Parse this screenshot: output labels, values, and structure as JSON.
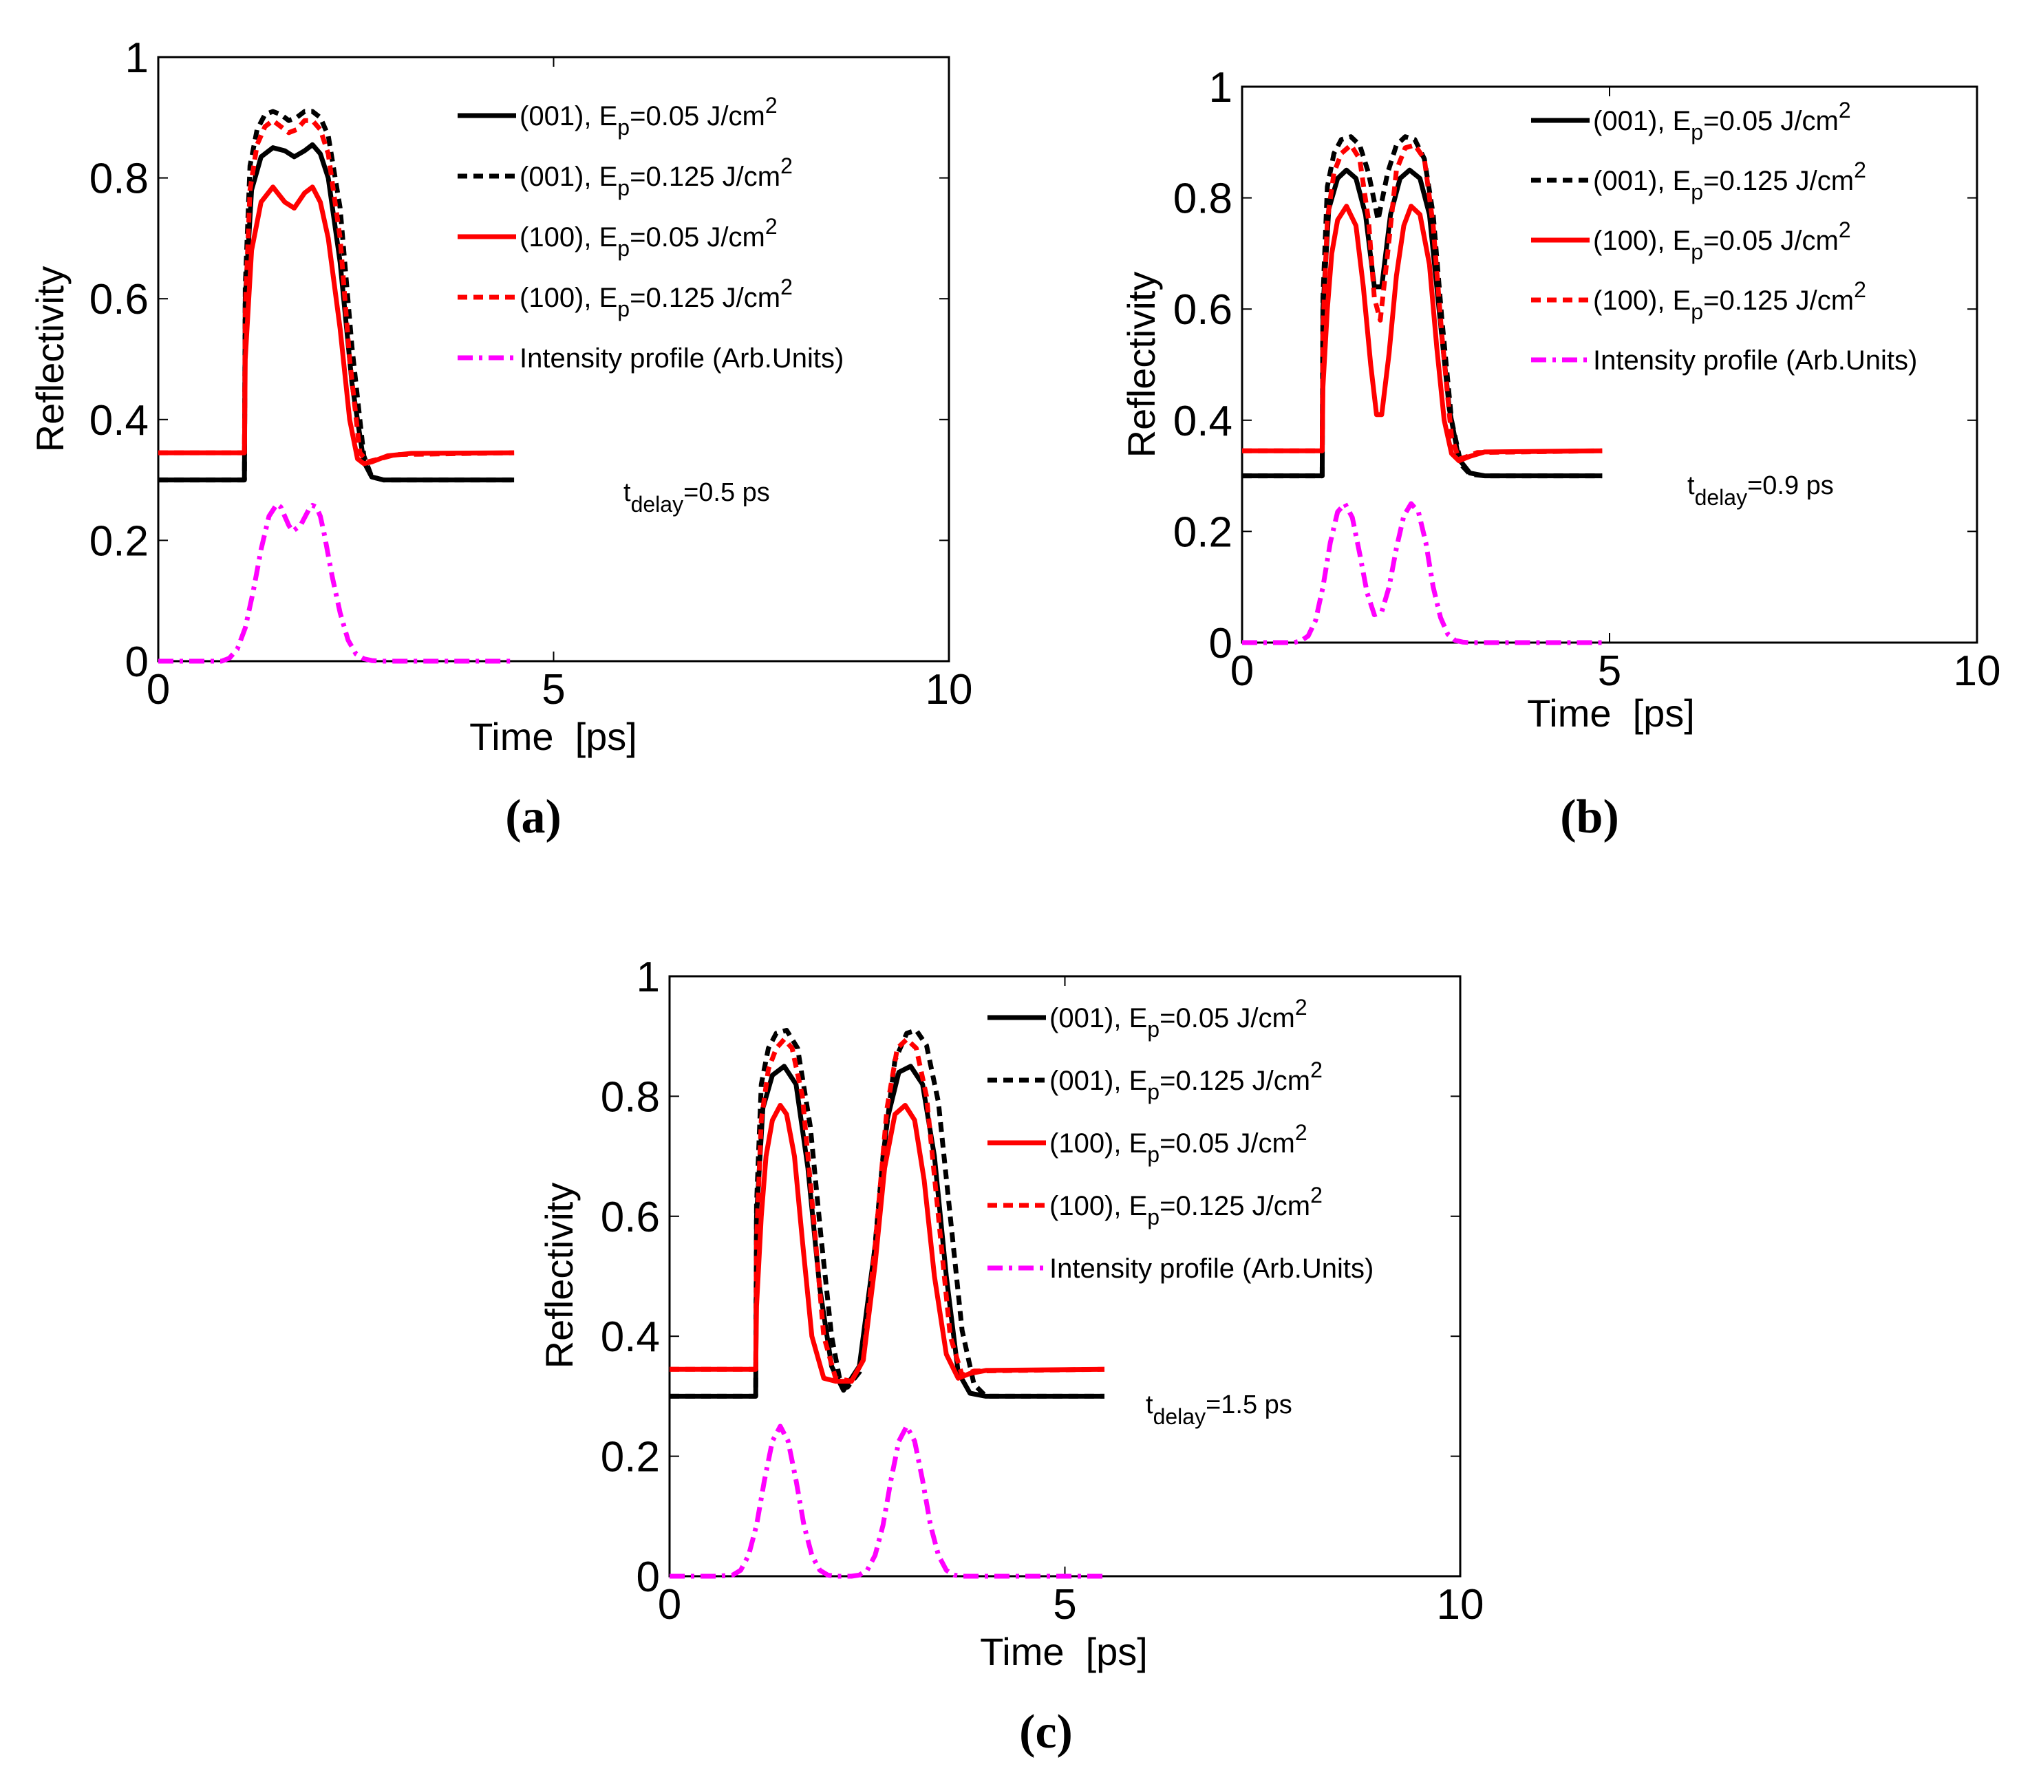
{
  "figure": {
    "panels": [
      {
        "id": "a",
        "caption": "(a)"
      },
      {
        "id": "b",
        "caption": "(b)"
      },
      {
        "id": "c",
        "caption": "(c)"
      }
    ]
  },
  "colors": {
    "black": "#000000",
    "red": "#ff0000",
    "magenta": "#ff00ff"
  },
  "chart_data": [
    {
      "type": "line",
      "panel": "(a)",
      "xlabel": "Time  [ps]",
      "ylabel": "Reflectivity",
      "xlim": [
        0,
        10
      ],
      "ylim": [
        0,
        1
      ],
      "xticks": [
        "0",
        "5",
        "10"
      ],
      "yticks": [
        "0",
        "0.2",
        "0.4",
        "0.6",
        "0.8",
        "1"
      ],
      "legend_position": "top-right",
      "annotation": {
        "t": "t",
        "sub": "delay",
        "rest": "=0.5 ps"
      },
      "series": [
        {
          "name": "(001), E",
          "sub": "p",
          "rest": "=0.05 J/cm",
          "sup": "2",
          "color": "#000000",
          "style": "solid",
          "x": [
            0,
            1.09,
            1.1,
            1.18,
            1.3,
            1.45,
            1.6,
            1.72,
            1.85,
            1.95,
            2.05,
            2.15,
            2.3,
            2.45,
            2.6,
            2.7,
            2.85,
            3.0,
            4.5
          ],
          "y": [
            0.3,
            0.3,
            0.6,
            0.78,
            0.835,
            0.85,
            0.845,
            0.835,
            0.845,
            0.855,
            0.84,
            0.8,
            0.66,
            0.46,
            0.33,
            0.305,
            0.3,
            0.3,
            0.3
          ]
        },
        {
          "name": "(001), E",
          "sub": "p",
          "rest": "=0.125 J/cm",
          "sup": "2",
          "color": "#000000",
          "style": "dash",
          "x": [
            0,
            1.09,
            1.1,
            1.16,
            1.25,
            1.35,
            1.45,
            1.55,
            1.65,
            1.75,
            1.85,
            1.95,
            2.05,
            2.15,
            2.3,
            2.45,
            2.6,
            2.7,
            2.85,
            3.0,
            4.5
          ],
          "y": [
            0.3,
            0.3,
            0.62,
            0.82,
            0.88,
            0.905,
            0.91,
            0.905,
            0.895,
            0.9,
            0.91,
            0.91,
            0.9,
            0.87,
            0.75,
            0.52,
            0.34,
            0.305,
            0.3,
            0.3,
            0.3
          ]
        },
        {
          "name": "(100), E",
          "sub": "p",
          "rest": "=0.05 J/cm",
          "sup": "2",
          "color": "#ff0000",
          "style": "solid",
          "x": [
            0,
            1.09,
            1.1,
            1.18,
            1.3,
            1.45,
            1.6,
            1.72,
            1.85,
            1.95,
            2.05,
            2.15,
            2.3,
            2.42,
            2.52,
            2.6,
            2.7,
            2.9,
            3.2,
            4.5
          ],
          "y": [
            0.345,
            0.345,
            0.5,
            0.68,
            0.76,
            0.785,
            0.76,
            0.75,
            0.775,
            0.785,
            0.76,
            0.7,
            0.55,
            0.4,
            0.335,
            0.327,
            0.33,
            0.34,
            0.344,
            0.345
          ]
        },
        {
          "name": "(100), E",
          "sub": "p",
          "rest": "=0.125 J/cm",
          "sup": "2",
          "color": "#ff0000",
          "style": "dash",
          "x": [
            0,
            1.09,
            1.1,
            1.16,
            1.25,
            1.35,
            1.45,
            1.55,
            1.65,
            1.75,
            1.85,
            1.95,
            2.05,
            2.15,
            2.3,
            2.42,
            2.55,
            2.65,
            2.8,
            3.0,
            4.5
          ],
          "y": [
            0.345,
            0.345,
            0.58,
            0.78,
            0.855,
            0.885,
            0.895,
            0.885,
            0.875,
            0.88,
            0.895,
            0.895,
            0.88,
            0.84,
            0.7,
            0.5,
            0.345,
            0.33,
            0.335,
            0.342,
            0.345
          ]
        },
        {
          "name": "Intensity profile (Arb.Units)",
          "color": "#ff00ff",
          "style": "dashdot",
          "x": [
            0,
            0.8,
            0.9,
            1.0,
            1.1,
            1.2,
            1.3,
            1.4,
            1.5,
            1.55,
            1.6,
            1.65,
            1.7,
            1.8,
            1.9,
            1.95,
            2.0,
            2.05,
            2.1,
            2.2,
            2.3,
            2.4,
            2.5,
            2.6,
            2.7,
            2.8,
            4.5
          ],
          "y": [
            0,
            0,
            0.005,
            0.02,
            0.055,
            0.115,
            0.185,
            0.24,
            0.26,
            0.255,
            0.24,
            0.225,
            0.215,
            0.225,
            0.25,
            0.258,
            0.255,
            0.24,
            0.21,
            0.14,
            0.08,
            0.035,
            0.012,
            0.004,
            0.001,
            0,
            0
          ]
        }
      ]
    },
    {
      "type": "line",
      "panel": "(b)",
      "xlabel": "Time  [ps]",
      "ylabel": "Reflectivity",
      "xlim": [
        0,
        10
      ],
      "ylim": [
        0,
        1
      ],
      "xticks": [
        "0",
        "5",
        "10"
      ],
      "yticks": [
        "0",
        "0.2",
        "0.4",
        "0.6",
        "0.8",
        "1"
      ],
      "legend_position": "top-right",
      "annotation": {
        "t": "t",
        "sub": "delay",
        "rest": "=0.9 ps"
      },
      "series": [
        {
          "name": "(001), E",
          "sub": "p",
          "rest": "=0.05 J/cm",
          "sup": "2",
          "color": "#000000",
          "style": "solid",
          "x": [
            0,
            1.09,
            1.1,
            1.18,
            1.3,
            1.42,
            1.55,
            1.68,
            1.8,
            1.9,
            2.02,
            2.15,
            2.28,
            2.42,
            2.55,
            2.68,
            2.82,
            2.95,
            3.1,
            3.3,
            4.9
          ],
          "y": [
            0.3,
            0.3,
            0.6,
            0.78,
            0.835,
            0.85,
            0.835,
            0.77,
            0.64,
            0.64,
            0.77,
            0.835,
            0.85,
            0.835,
            0.77,
            0.6,
            0.42,
            0.33,
            0.305,
            0.3,
            0.3
          ]
        },
        {
          "name": "(001), E",
          "sub": "p",
          "rest": "=0.125 J/cm",
          "sup": "2",
          "color": "#000000",
          "style": "dash",
          "x": [
            0,
            1.09,
            1.1,
            1.16,
            1.25,
            1.35,
            1.48,
            1.6,
            1.72,
            1.85,
            1.98,
            2.1,
            2.22,
            2.35,
            2.48,
            2.6,
            2.72,
            2.85,
            2.98,
            3.1,
            3.3,
            4.9
          ],
          "y": [
            0.3,
            0.3,
            0.62,
            0.82,
            0.88,
            0.905,
            0.91,
            0.895,
            0.845,
            0.76,
            0.845,
            0.895,
            0.91,
            0.905,
            0.87,
            0.77,
            0.58,
            0.4,
            0.32,
            0.303,
            0.3,
            0.3
          ]
        },
        {
          "name": "(100), E",
          "sub": "p",
          "rest": "=0.05 J/cm",
          "sup": "2",
          "color": "#ff0000",
          "style": "solid",
          "x": [
            0,
            1.09,
            1.1,
            1.16,
            1.22,
            1.3,
            1.42,
            1.55,
            1.65,
            1.75,
            1.83,
            1.9,
            2.0,
            2.1,
            2.2,
            2.3,
            2.42,
            2.55,
            2.65,
            2.75,
            2.85,
            2.95,
            3.1,
            3.3,
            4.9
          ],
          "y": [
            0.345,
            0.345,
            0.46,
            0.6,
            0.7,
            0.76,
            0.785,
            0.75,
            0.64,
            0.5,
            0.41,
            0.41,
            0.52,
            0.66,
            0.75,
            0.785,
            0.77,
            0.68,
            0.53,
            0.4,
            0.34,
            0.327,
            0.335,
            0.343,
            0.345
          ]
        },
        {
          "name": "(100), E",
          "sub": "p",
          "rest": "=0.125 J/cm",
          "sup": "2",
          "color": "#ff0000",
          "style": "dash",
          "x": [
            0,
            1.09,
            1.1,
            1.16,
            1.25,
            1.35,
            1.48,
            1.6,
            1.72,
            1.8,
            1.88,
            1.98,
            2.1,
            2.22,
            2.35,
            2.48,
            2.6,
            2.72,
            2.85,
            2.95,
            3.05,
            3.2,
            4.9
          ],
          "y": [
            0.345,
            0.345,
            0.56,
            0.76,
            0.845,
            0.88,
            0.895,
            0.87,
            0.76,
            0.62,
            0.58,
            0.7,
            0.85,
            0.89,
            0.895,
            0.87,
            0.75,
            0.55,
            0.37,
            0.33,
            0.334,
            0.342,
            0.345
          ]
        },
        {
          "name": "Intensity profile (Arb.Units)",
          "color": "#ff00ff",
          "style": "dashdot",
          "x": [
            0,
            0.7,
            0.8,
            0.9,
            1.0,
            1.1,
            1.2,
            1.3,
            1.4,
            1.5,
            1.6,
            1.7,
            1.8,
            1.9,
            2.0,
            2.1,
            2.2,
            2.3,
            2.4,
            2.5,
            2.6,
            2.7,
            2.8,
            2.9,
            3.0,
            3.1,
            4.9
          ],
          "y": [
            0,
            0,
            0.003,
            0.012,
            0.04,
            0.1,
            0.18,
            0.235,
            0.25,
            0.225,
            0.16,
            0.09,
            0.05,
            0.055,
            0.1,
            0.17,
            0.228,
            0.25,
            0.235,
            0.18,
            0.1,
            0.045,
            0.015,
            0.004,
            0.001,
            0,
            0
          ]
        }
      ]
    },
    {
      "type": "line",
      "panel": "(c)",
      "xlabel": "Time  [ps]",
      "ylabel": "Reflectivity",
      "xlim": [
        0,
        10
      ],
      "ylim": [
        0,
        1
      ],
      "xticks": [
        "0",
        "5",
        "10"
      ],
      "yticks": [
        "0",
        "0.2",
        "0.4",
        "0.6",
        "0.8",
        "1"
      ],
      "legend_position": "top-right",
      "annotation": {
        "t": "t",
        "sub": "delay",
        "rest": "=1.5 ps"
      },
      "series": [
        {
          "name": "(001), E",
          "sub": "p",
          "rest": "=0.05 J/cm",
          "sup": "2",
          "color": "#000000",
          "style": "solid",
          "x": [
            0,
            1.09,
            1.1,
            1.18,
            1.3,
            1.45,
            1.6,
            1.75,
            1.9,
            2.05,
            2.2,
            2.4,
            2.6,
            2.75,
            2.9,
            3.05,
            3.2,
            3.35,
            3.5,
            3.65,
            3.8,
            4.0,
            5.5
          ],
          "y": [
            0.3,
            0.3,
            0.6,
            0.78,
            0.835,
            0.85,
            0.82,
            0.68,
            0.48,
            0.35,
            0.31,
            0.35,
            0.55,
            0.76,
            0.84,
            0.85,
            0.82,
            0.7,
            0.5,
            0.34,
            0.305,
            0.3,
            0.3
          ]
        },
        {
          "name": "(001), E",
          "sub": "p",
          "rest": "=0.125 J/cm",
          "sup": "2",
          "color": "#000000",
          "style": "dash",
          "x": [
            0,
            1.09,
            1.1,
            1.16,
            1.25,
            1.35,
            1.48,
            1.62,
            1.78,
            1.92,
            2.05,
            2.15,
            2.25,
            2.4,
            2.55,
            2.7,
            2.85,
            3.0,
            3.12,
            3.25,
            3.4,
            3.55,
            3.7,
            3.85,
            4.0,
            5.5
          ],
          "y": [
            0.3,
            0.3,
            0.62,
            0.82,
            0.88,
            0.905,
            0.91,
            0.88,
            0.75,
            0.56,
            0.4,
            0.33,
            0.315,
            0.34,
            0.48,
            0.7,
            0.86,
            0.905,
            0.91,
            0.885,
            0.79,
            0.6,
            0.41,
            0.32,
            0.3,
            0.3
          ]
        },
        {
          "name": "(100), E",
          "sub": "p",
          "rest": "=0.05 J/cm",
          "sup": "2",
          "color": "#ff0000",
          "style": "solid",
          "x": [
            0,
            1.09,
            1.1,
            1.16,
            1.22,
            1.3,
            1.4,
            1.48,
            1.58,
            1.68,
            1.8,
            1.95,
            2.1,
            2.3,
            2.45,
            2.6,
            2.72,
            2.85,
            2.98,
            3.1,
            3.22,
            3.35,
            3.5,
            3.65,
            3.8,
            4.0,
            5.5
          ],
          "y": [
            0.345,
            0.345,
            0.45,
            0.6,
            0.7,
            0.76,
            0.785,
            0.77,
            0.7,
            0.56,
            0.4,
            0.33,
            0.325,
            0.325,
            0.36,
            0.52,
            0.68,
            0.77,
            0.785,
            0.76,
            0.66,
            0.5,
            0.37,
            0.33,
            0.338,
            0.343,
            0.345
          ]
        },
        {
          "name": "(100), E",
          "sub": "p",
          "rest": "=0.125 J/cm",
          "sup": "2",
          "color": "#ff0000",
          "style": "dash",
          "x": [
            0,
            1.09,
            1.1,
            1.16,
            1.25,
            1.35,
            1.45,
            1.55,
            1.68,
            1.82,
            1.95,
            2.1,
            2.3,
            2.45,
            2.6,
            2.75,
            2.88,
            3.0,
            3.12,
            3.25,
            3.4,
            3.55,
            3.7,
            3.85,
            5.5
          ],
          "y": [
            0.345,
            0.345,
            0.56,
            0.76,
            0.845,
            0.88,
            0.895,
            0.88,
            0.8,
            0.6,
            0.4,
            0.33,
            0.325,
            0.36,
            0.55,
            0.78,
            0.88,
            0.895,
            0.88,
            0.8,
            0.6,
            0.4,
            0.335,
            0.342,
            0.345
          ]
        },
        {
          "name": "Intensity profile (Arb.Units)",
          "color": "#ff00ff",
          "style": "dashdot",
          "x": [
            0,
            0.6,
            0.8,
            0.9,
            1.0,
            1.1,
            1.2,
            1.3,
            1.4,
            1.5,
            1.6,
            1.7,
            1.8,
            1.9,
            2.0,
            2.1,
            2.3,
            2.4,
            2.5,
            2.6,
            2.7,
            2.8,
            2.9,
            3.0,
            3.1,
            3.2,
            3.3,
            3.4,
            3.5,
            3.6,
            3.7,
            5.5
          ],
          "y": [
            0,
            0,
            0.002,
            0.01,
            0.035,
            0.085,
            0.16,
            0.225,
            0.25,
            0.225,
            0.16,
            0.085,
            0.035,
            0.01,
            0.002,
            0,
            0,
            0.002,
            0.01,
            0.035,
            0.085,
            0.16,
            0.225,
            0.25,
            0.225,
            0.16,
            0.085,
            0.035,
            0.01,
            0.002,
            0,
            0
          ]
        }
      ]
    }
  ]
}
